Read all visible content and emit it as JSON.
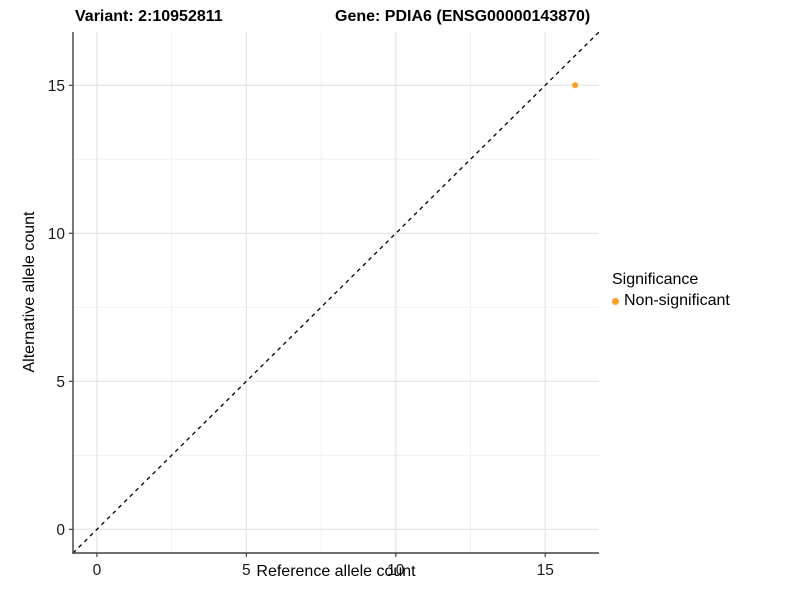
{
  "page": {
    "background": "#FFFFFF"
  },
  "chart_data": {
    "type": "scatter",
    "titles": {
      "left": "Variant: 2:10952811",
      "right": "Gene: PDIA6 (ENSG00000143870)"
    },
    "xlabel": "Reference allele count",
    "ylabel": "Alternative allele count",
    "xlim": [
      -0.8,
      16.8
    ],
    "ylim": [
      -0.8,
      16.8
    ],
    "x_major_ticks": [
      0,
      5,
      10,
      15
    ],
    "y_major_ticks": [
      0,
      5,
      10,
      15
    ],
    "x_minor_ticks": [
      2.5,
      7.5,
      12.5
    ],
    "y_minor_ticks": [
      2.5,
      7.5,
      12.5
    ],
    "grid": true,
    "points": [
      {
        "x": 16,
        "y": 15,
        "series": "Non-significant"
      }
    ],
    "reference_line": {
      "slope": 1,
      "intercept": 0,
      "style": "dashed"
    },
    "legend": {
      "title": "Significance",
      "position": "right",
      "items": [
        {
          "label": "Non-significant",
          "color": "#F9A02B"
        }
      ]
    },
    "colors": {
      "point": "#F9A02B",
      "grid_major": "#E4E4E4",
      "grid_minor": "#F1F1F1",
      "axis_line": "#404040",
      "tick_mark": "#404040",
      "tick_label": "#1A1A1A",
      "reference_line": "#000000"
    }
  }
}
